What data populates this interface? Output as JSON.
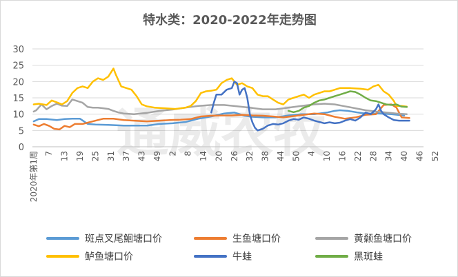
{
  "chart_data": {
    "type": "line",
    "title": "特水类：2020-2022年走势图",
    "watermark": "通威农牧",
    "ylim": [
      0,
      30
    ],
    "yticks": [
      0,
      5,
      10,
      15,
      20,
      25,
      30
    ],
    "x_count": 152,
    "x_first_label": "2020年第1周",
    "x_tick_labels": [
      "7",
      "13",
      "19",
      "25",
      "31",
      "37",
      "43",
      "49",
      "2",
      "8",
      "14",
      "20",
      "26",
      "32",
      "38",
      "44",
      "50",
      "4",
      "10",
      "16",
      "22",
      "28",
      "34",
      "40",
      "46",
      "52"
    ],
    "grid": true,
    "legend_position": "bottom",
    "series": [
      {
        "name": "斑点叉尾鮰塘口价",
        "color": "#5b9bd5",
        "points": [
          [
            1,
            7.8
          ],
          [
            3,
            8.5
          ],
          [
            6,
            8.5
          ],
          [
            10,
            8.2
          ],
          [
            13,
            8.5
          ],
          [
            16,
            8.6
          ],
          [
            19,
            8.6
          ],
          [
            22,
            7.0
          ],
          [
            25,
            6.8
          ],
          [
            30,
            6.7
          ],
          [
            36,
            6.5
          ],
          [
            40,
            6.5
          ],
          [
            45,
            6.5
          ],
          [
            50,
            7.0
          ],
          [
            55,
            7.2
          ],
          [
            60,
            7.6
          ],
          [
            65,
            8.6
          ],
          [
            70,
            9.3
          ],
          [
            75,
            10.2
          ],
          [
            79,
            10.5
          ],
          [
            83,
            9.5
          ],
          [
            86,
            9.2
          ],
          [
            90,
            9.0
          ],
          [
            95,
            9.0
          ],
          [
            100,
            9.6
          ],
          [
            105,
            10.0
          ],
          [
            110,
            10.0
          ],
          [
            115,
            10.5
          ],
          [
            118,
            11.0
          ],
          [
            120,
            11.2
          ],
          [
            123,
            11.0
          ],
          [
            127,
            10.5
          ],
          [
            130,
            10.2
          ],
          [
            135,
            10.2
          ],
          [
            140,
            10.0
          ],
          [
            145,
            9.6
          ]
        ]
      },
      {
        "name": "生鱼塘口价",
        "color": "#ed7d31",
        "points": [
          [
            1,
            6.8
          ],
          [
            3,
            6.3
          ],
          [
            5,
            7.0
          ],
          [
            7,
            6.4
          ],
          [
            9,
            5.5
          ],
          [
            11,
            5.3
          ],
          [
            13,
            6.4
          ],
          [
            15,
            6.0
          ],
          [
            17,
            7.0
          ],
          [
            20,
            7.0
          ],
          [
            24,
            7.8
          ],
          [
            28,
            8.6
          ],
          [
            32,
            8.6
          ],
          [
            36,
            8.2
          ],
          [
            40,
            8.0
          ],
          [
            45,
            7.8
          ],
          [
            50,
            8.0
          ],
          [
            54,
            8.2
          ],
          [
            58,
            8.3
          ],
          [
            62,
            8.5
          ],
          [
            66,
            9.3
          ],
          [
            70,
            9.5
          ],
          [
            74,
            9.6
          ],
          [
            78,
            9.6
          ],
          [
            82,
            9.8
          ],
          [
            86,
            9.6
          ],
          [
            90,
            9.5
          ],
          [
            94,
            9.3
          ],
          [
            98,
            9.0
          ],
          [
            102,
            9.4
          ],
          [
            106,
            9.8
          ],
          [
            110,
            10.2
          ],
          [
            114,
            10.0
          ],
          [
            118,
            9.2
          ],
          [
            122,
            8.6
          ],
          [
            126,
            9.0
          ],
          [
            130,
            9.8
          ],
          [
            134,
            10.0
          ],
          [
            137,
            12.8
          ],
          [
            140,
            13.0
          ],
          [
            142,
            12.0
          ],
          [
            144,
            9.0
          ],
          [
            147,
            8.8
          ]
        ]
      },
      {
        "name": "黄颡鱼塘口价",
        "color": "#a5a5a5",
        "points": [
          [
            1,
            10.8
          ],
          [
            2,
            11.2
          ],
          [
            4,
            13.0
          ],
          [
            6,
            11.5
          ],
          [
            8,
            12.5
          ],
          [
            10,
            13.2
          ],
          [
            12,
            12.6
          ],
          [
            14,
            12.5
          ],
          [
            16,
            14.5
          ],
          [
            18,
            14.0
          ],
          [
            20,
            13.5
          ],
          [
            22,
            12.2
          ],
          [
            24,
            12.0
          ],
          [
            26,
            12.0
          ],
          [
            28,
            11.8
          ],
          [
            30,
            11.6
          ],
          [
            32,
            11.0
          ],
          [
            34,
            10.5
          ],
          [
            36,
            10.2
          ],
          [
            40,
            10.0
          ],
          [
            45,
            10.4
          ],
          [
            50,
            11.0
          ],
          [
            55,
            11.4
          ],
          [
            60,
            12.0
          ],
          [
            65,
            12.5
          ],
          [
            70,
            12.8
          ],
          [
            75,
            12.8
          ],
          [
            80,
            12.4
          ],
          [
            85,
            12.0
          ],
          [
            90,
            11.5
          ],
          [
            95,
            11.5
          ],
          [
            100,
            12.0
          ],
          [
            105,
            12.5
          ],
          [
            110,
            13.0
          ],
          [
            114,
            13.2
          ],
          [
            118,
            13.0
          ],
          [
            122,
            12.4
          ],
          [
            126,
            11.8
          ],
          [
            130,
            11.2
          ],
          [
            134,
            10.8
          ],
          [
            138,
            10.5
          ],
          [
            142,
            10.2
          ],
          [
            146,
            10.0
          ]
        ]
      },
      {
        "name": "鲈鱼塘口价",
        "color": "#ffc000",
        "points": [
          [
            1,
            13.0
          ],
          [
            3,
            13.2
          ],
          [
            6,
            12.8
          ],
          [
            8,
            14.2
          ],
          [
            10,
            13.6
          ],
          [
            12,
            13.0
          ],
          [
            14,
            14.0
          ],
          [
            16,
            16.5
          ],
          [
            18,
            18.0
          ],
          [
            20,
            18.5
          ],
          [
            22,
            18.0
          ],
          [
            24,
            20.0
          ],
          [
            26,
            21.0
          ],
          [
            28,
            20.5
          ],
          [
            30,
            21.5
          ],
          [
            32,
            24.0
          ],
          [
            33,
            22.0
          ],
          [
            35,
            18.5
          ],
          [
            37,
            18.0
          ],
          [
            39,
            17.5
          ],
          [
            41,
            15.5
          ],
          [
            43,
            13.0
          ],
          [
            45,
            12.4
          ],
          [
            48,
            12.0
          ],
          [
            52,
            11.8
          ],
          [
            56,
            11.6
          ],
          [
            60,
            12.0
          ],
          [
            62,
            12.5
          ],
          [
            64,
            14.0
          ],
          [
            66,
            16.5
          ],
          [
            68,
            17.0
          ],
          [
            70,
            17.2
          ],
          [
            72,
            17.5
          ],
          [
            74,
            19.5
          ],
          [
            76,
            20.5
          ],
          [
            78,
            21.0
          ],
          [
            80,
            19.0
          ],
          [
            82,
            19.5
          ],
          [
            84,
            18.5
          ],
          [
            86,
            18.0
          ],
          [
            88,
            16.0
          ],
          [
            90,
            15.5
          ],
          [
            92,
            15.5
          ],
          [
            94,
            14.5
          ],
          [
            96,
            13.5
          ],
          [
            98,
            13.0
          ],
          [
            100,
            14.5
          ],
          [
            102,
            15.0
          ],
          [
            104,
            15.5
          ],
          [
            106,
            16.0
          ],
          [
            108,
            15.0
          ],
          [
            110,
            16.0
          ],
          [
            112,
            16.5
          ],
          [
            114,
            17.0
          ],
          [
            116,
            17.0
          ],
          [
            118,
            17.5
          ],
          [
            120,
            18.0
          ],
          [
            124,
            18.0
          ],
          [
            128,
            17.8
          ],
          [
            131,
            17.5
          ],
          [
            133,
            18.5
          ],
          [
            135,
            19.0
          ],
          [
            137,
            17.0
          ],
          [
            139,
            16.0
          ],
          [
            141,
            14.0
          ],
          [
            142,
            12.5
          ],
          [
            144,
            12.5
          ],
          [
            146,
            12.3
          ]
        ]
      },
      {
        "name": "牛蛙",
        "color": "#4472c4",
        "points": [
          [
            70,
            10.5
          ],
          [
            71,
            13.5
          ],
          [
            72,
            16.0
          ],
          [
            74,
            16.0
          ],
          [
            76,
            17.5
          ],
          [
            78,
            18.0
          ],
          [
            79,
            20.0
          ],
          [
            80,
            19.5
          ],
          [
            81,
            16.0
          ],
          [
            82,
            17.5
          ],
          [
            83,
            18.0
          ],
          [
            84,
            15.0
          ],
          [
            85,
            10.0
          ],
          [
            86,
            7.5
          ],
          [
            87,
            5.8
          ],
          [
            88,
            5.0
          ],
          [
            90,
            5.5
          ],
          [
            92,
            6.5
          ],
          [
            94,
            7.0
          ],
          [
            96,
            6.8
          ],
          [
            98,
            7.2
          ],
          [
            100,
            8.0
          ],
          [
            102,
            8.5
          ],
          [
            104,
            8.3
          ],
          [
            106,
            9.0
          ],
          [
            108,
            8.6
          ],
          [
            110,
            8.0
          ],
          [
            112,
            7.6
          ],
          [
            114,
            7.2
          ],
          [
            116,
            7.5
          ],
          [
            118,
            7.2
          ],
          [
            120,
            7.4
          ],
          [
            122,
            8.0
          ],
          [
            124,
            8.5
          ],
          [
            126,
            8.0
          ],
          [
            128,
            9.0
          ],
          [
            130,
            10.5
          ],
          [
            132,
            10.0
          ],
          [
            134,
            11.5
          ],
          [
            135,
            13.0
          ],
          [
            136,
            11.0
          ],
          [
            137,
            10.0
          ],
          [
            139,
            9.0
          ],
          [
            141,
            8.2
          ],
          [
            143,
            8.0
          ],
          [
            145,
            8.0
          ],
          [
            147,
            8.0
          ]
        ]
      },
      {
        "name": "黑斑蛙",
        "color": "#70ad47",
        "points": [
          [
            100,
            11.0
          ],
          [
            102,
            10.6
          ],
          [
            104,
            11.0
          ],
          [
            106,
            12.0
          ],
          [
            108,
            12.5
          ],
          [
            110,
            13.5
          ],
          [
            112,
            14.2
          ],
          [
            114,
            14.5
          ],
          [
            116,
            15.0
          ],
          [
            118,
            15.5
          ],
          [
            120,
            16.0
          ],
          [
            122,
            16.5
          ],
          [
            124,
            17.0
          ],
          [
            126,
            16.8
          ],
          [
            128,
            16.0
          ],
          [
            130,
            15.0
          ],
          [
            132,
            14.2
          ],
          [
            134,
            14.0
          ],
          [
            136,
            13.5
          ],
          [
            138,
            13.0
          ],
          [
            140,
            12.8
          ],
          [
            142,
            13.0
          ],
          [
            144,
            12.3
          ],
          [
            146,
            12.2
          ]
        ]
      }
    ]
  }
}
